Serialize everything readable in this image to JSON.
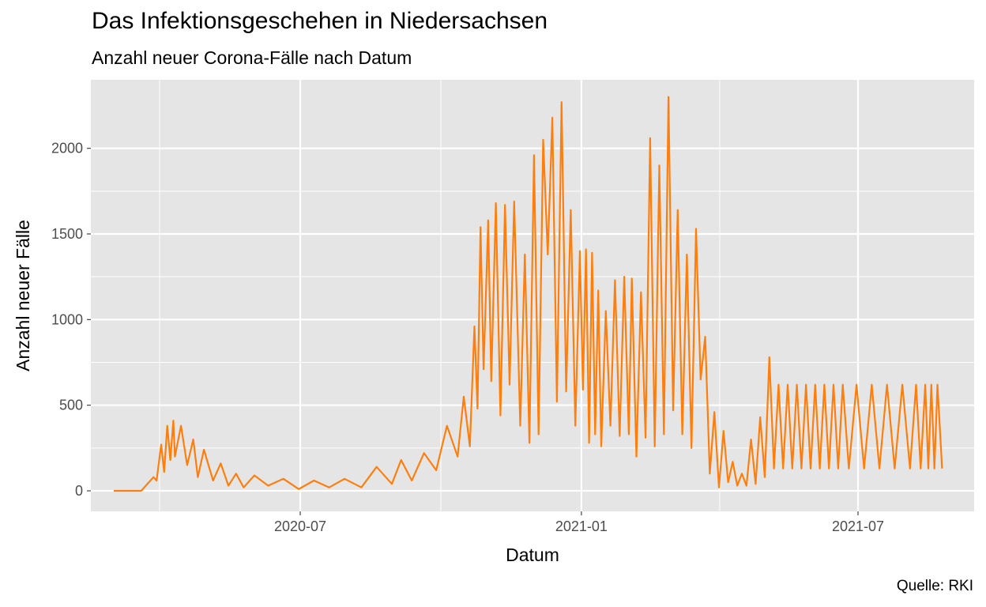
{
  "chart_data": {
    "type": "line",
    "title": "Das Infektionsgeschehen in Niedersachsen",
    "subtitle": "Anzahl neuer Corona-Fälle nach Datum",
    "xlabel": "Datum",
    "ylabel": "Anzahl neuer Fälle",
    "caption": "Quelle: RKI",
    "xlim": [
      "2020-02-15",
      "2021-09-15"
    ],
    "ylim": [
      -120,
      2400
    ],
    "y_ticks": [
      0,
      500,
      1000,
      1500,
      2000
    ],
    "y_tick_labels": [
      "0",
      "500",
      "1000",
      "1500",
      "2000"
    ],
    "x_ticks": [
      "2020-07-01",
      "2021-01-01",
      "2021-07-01"
    ],
    "x_tick_labels": [
      "2020-07",
      "2021-01",
      "2021-07"
    ],
    "grid": true,
    "colors": {
      "line": "#FF7F0E",
      "panel": "#E5E5E5",
      "grid": "#FFFFFF"
    },
    "series": [
      {
        "x": [
          "2020-03-01",
          "2020-03-19",
          "2020-03-27",
          "2020-03-29",
          "2020-04-01",
          "2020-04-03",
          "2020-04-05",
          "2020-04-07",
          "2020-04-09",
          "2020-04-10",
          "2020-04-14",
          "2020-04-18",
          "2020-04-22",
          "2020-04-25",
          "2020-04-29",
          "2020-05-05",
          "2020-05-10",
          "2020-05-15",
          "2020-05-20",
          "2020-05-25",
          "2020-06-01",
          "2020-06-10",
          "2020-06-20",
          "2020-06-30",
          "2020-07-10",
          "2020-07-20",
          "2020-07-30",
          "2020-08-10",
          "2020-08-20",
          "2020-08-30",
          "2020-09-05",
          "2020-09-12",
          "2020-09-20",
          "2020-09-28",
          "2020-10-05",
          "2020-10-12",
          "2020-10-16",
          "2020-10-20",
          "2020-10-23",
          "2020-10-25",
          "2020-10-27",
          "2020-10-29",
          "2020-11-01",
          "2020-11-03",
          "2020-11-06",
          "2020-11-09",
          "2020-11-12",
          "2020-11-15",
          "2020-11-18",
          "2020-11-22",
          "2020-11-25",
          "2020-11-28",
          "2020-12-01",
          "2020-12-04",
          "2020-12-07",
          "2020-12-10",
          "2020-12-13",
          "2020-12-16",
          "2020-12-19",
          "2020-12-22",
          "2020-12-25",
          "2020-12-28",
          "2020-12-31",
          "2021-01-02",
          "2021-01-04",
          "2021-01-06",
          "2021-01-08",
          "2021-01-10",
          "2021-01-12",
          "2021-01-14",
          "2021-01-17",
          "2021-01-20",
          "2021-01-23",
          "2021-01-26",
          "2021-01-29",
          "2021-02-01",
          "2021-02-03",
          "2021-02-06",
          "2021-02-09",
          "2021-02-12",
          "2021-02-15",
          "2021-02-18",
          "2021-02-21",
          "2021-02-24",
          "2021-02-27",
          "2021-03-02",
          "2021-03-05",
          "2021-03-08",
          "2021-03-11",
          "2021-03-14",
          "2021-03-17",
          "2021-03-20",
          "2021-03-23",
          "2021-03-26",
          "2021-03-29",
          "2021-04-01",
          "2021-04-04",
          "2021-04-07",
          "2021-04-10",
          "2021-04-13",
          "2021-04-16",
          "2021-04-19",
          "2021-04-22",
          "2021-04-25",
          "2021-04-28",
          "2021-05-01",
          "2021-05-04",
          "2021-05-07",
          "2021-05-10",
          "2021-05-13",
          "2021-05-16",
          "2021-05-19",
          "2021-05-22",
          "2021-05-25",
          "2021-05-28",
          "2021-05-31",
          "2021-06-03",
          "2021-06-06",
          "2021-06-09",
          "2021-06-12",
          "2021-06-15",
          "2021-06-18",
          "2021-06-21",
          "2021-06-25",
          "2021-06-30",
          "2021-07-05",
          "2021-07-10",
          "2021-07-15",
          "2021-07-20",
          "2021-07-25",
          "2021-07-30",
          "2021-08-04",
          "2021-08-08",
          "2021-08-11",
          "2021-08-14",
          "2021-08-16",
          "2021-08-18",
          "2021-08-20",
          "2021-08-22",
          "2021-08-25"
        ],
        "y": [
          0,
          0,
          80,
          60,
          270,
          110,
          380,
          180,
          410,
          200,
          380,
          150,
          300,
          80,
          240,
          60,
          160,
          30,
          100,
          20,
          90,
          30,
          70,
          10,
          60,
          20,
          70,
          20,
          140,
          40,
          180,
          60,
          220,
          120,
          380,
          200,
          550,
          260,
          960,
          480,
          1540,
          710,
          1580,
          640,
          1680,
          440,
          1670,
          620,
          1690,
          380,
          1380,
          280,
          1960,
          330,
          2050,
          1380,
          2180,
          520,
          2270,
          580,
          1640,
          380,
          1400,
          590,
          1410,
          280,
          1390,
          330,
          1170,
          260,
          1050,
          380,
          1230,
          320,
          1250,
          330,
          1240,
          200,
          1160,
          310,
          2060,
          260,
          1900,
          330,
          2300,
          470,
          1640,
          330,
          1380,
          250,
          1530,
          650,
          900,
          100,
          460,
          20,
          350,
          50,
          170,
          30,
          100,
          30,
          300,
          40,
          430,
          80,
          780,
          130,
          620,
          130,
          620,
          130,
          620,
          130,
          620,
          130,
          620,
          130,
          620,
          130,
          620,
          130,
          620,
          130,
          620,
          130,
          620,
          130,
          620,
          130,
          620,
          130,
          620,
          130,
          620,
          130,
          620,
          130,
          620,
          130
        ]
      }
    ]
  }
}
